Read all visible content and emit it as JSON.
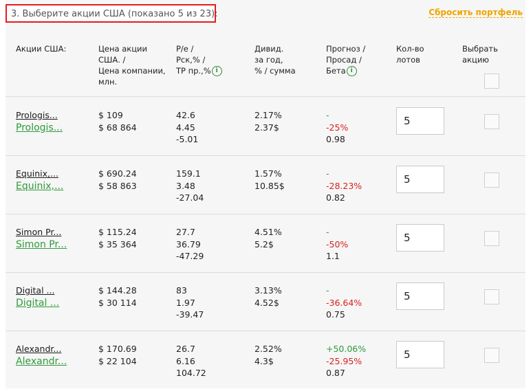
{
  "section_title": "3. Выберите акции США (показано 5 из 23):",
  "reset_link": "Сбросить портфель",
  "headers": {
    "name": [
      "Акции США:"
    ],
    "price": [
      "Цена акции",
      "США. /",
      "Цена компании,",
      "млн."
    ],
    "pe": [
      "P/e /",
      "Pск,% /",
      "TP пр.,%"
    ],
    "div": [
      "Дивид.",
      "за год,",
      "% / сумма"
    ],
    "forecast": [
      "Прогноз /",
      "Просад /",
      "Бета"
    ],
    "qty": [
      "Кол-во",
      "лотов"
    ],
    "select": [
      "Выбрать",
      "акцию"
    ]
  },
  "info_icon": "i",
  "rows": [
    {
      "short": "Prologis...",
      "link": "Prologis...",
      "price": "$ 109",
      "cap": "$ 68 864",
      "pe": "42.6",
      "psk": "4.45",
      "tp": "-5.01",
      "divp": "2.17%",
      "divs": "2.37$",
      "forecast": "-",
      "drawdown": "-25%",
      "beta": "0.98",
      "qty": "5"
    },
    {
      "short": "Equinix,...",
      "link": "Equinix,...",
      "price": "$ 690.24",
      "cap": "$ 58 863",
      "pe": "159.1",
      "psk": "3.48",
      "tp": "-27.04",
      "divp": "1.57%",
      "divs": "10.85$",
      "forecast": "-",
      "drawdown": "-28.23%",
      "beta": "0.82",
      "qty": "5"
    },
    {
      "short": "Simon Pr...",
      "link": "Simon Pr...",
      "price": "$ 115.24",
      "cap": "$ 35 364",
      "pe": "27.7",
      "psk": "36.79",
      "tp": "-47.29",
      "divp": "4.51%",
      "divs": "5.2$",
      "forecast": "-",
      "drawdown": "-50%",
      "beta": "1.1",
      "qty": "5"
    },
    {
      "short": "Digital ...",
      "link": "Digital ...",
      "price": "$ 144.28",
      "cap": "$ 30 114",
      "pe": "83",
      "psk": "1.97",
      "tp": "-39.47",
      "divp": "3.13%",
      "divs": "4.52$",
      "forecast": "-",
      "drawdown": "-36.64%",
      "beta": "0.75",
      "qty": "5"
    },
    {
      "short": "Alexandr...",
      "link": "Alexandr...",
      "price": "$ 170.69",
      "cap": "$ 22 104",
      "pe": "26.7",
      "psk": "6.16",
      "tp": "104.72",
      "divp": "2.52%",
      "divs": "4.3$",
      "forecast": "+50.06%",
      "drawdown": "-25.95%",
      "beta": "0.87",
      "qty": "5"
    }
  ],
  "colors": {
    "accent": "#2e9a3c",
    "negative": "#d81f1f",
    "link_orange": "#f0a500",
    "highlight_border": "#e41c1c"
  }
}
